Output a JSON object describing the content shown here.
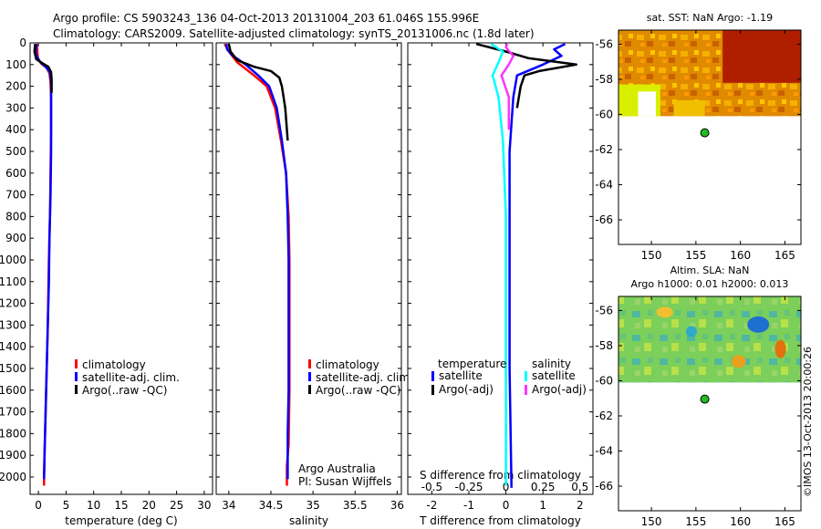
{
  "header": {
    "line1": "Argo profile: CS 5903243_136 04-Oct-2013 20131004_203 61.046S 155.996E",
    "line2": "Climatology: CARS2009. Satellite-adjusted climatology: synTS_20131006.nc (1.8d later)"
  },
  "side_stamp": "©IMOS 13-Oct-2013 20:00:26",
  "colors": {
    "climatology": "#ff0000",
    "satellite": "#0000ff",
    "argo": "#000000",
    "salinity_satellite": "#00ffff",
    "salinity_argo": "#ff33ff",
    "marker": "#22bb22"
  },
  "chart_data": [
    {
      "type": "line",
      "name": "temperature-panel",
      "xlabel": "temperature (deg C)",
      "ylabel": "",
      "xlim": [
        -1.5,
        31.5
      ],
      "ylim": [
        2080,
        0
      ],
      "x_ticks": [
        "0",
        "5",
        "10",
        "15",
        "20",
        "25",
        "30"
      ],
      "x_tick_values": [
        0,
        5,
        10,
        15,
        20,
        25,
        30
      ],
      "y_ticks": [
        0,
        100,
        200,
        300,
        400,
        500,
        600,
        700,
        800,
        900,
        1000,
        1100,
        1200,
        1300,
        1400,
        1500,
        1600,
        1700,
        1800,
        1900,
        2000
      ],
      "legend": [
        "climatology",
        "satellite-adj. clim.",
        "Argo(..raw -QC)"
      ],
      "series": [
        {
          "name": "climatology",
          "color": "#ff0000",
          "pairs": [
            [
              -0.3,
              5
            ],
            [
              -0.1,
              70
            ],
            [
              0.5,
              95
            ],
            [
              1.5,
              115
            ],
            [
              2.0,
              140
            ],
            [
              2.2,
              180
            ],
            [
              2.3,
              250
            ],
            [
              2.3,
              400
            ],
            [
              2.2,
              600
            ],
            [
              2.1,
              800
            ],
            [
              1.9,
              1000
            ],
            [
              1.7,
              1300
            ],
            [
              1.4,
              1600
            ],
            [
              1.1,
              1900
            ],
            [
              1.0,
              2040
            ]
          ]
        },
        {
          "name": "satellite-adj. clim.",
          "color": "#0000ff",
          "pairs": [
            [
              -0.4,
              5
            ],
            [
              -0.5,
              50
            ],
            [
              0.2,
              85
            ],
            [
              1.3,
              110
            ],
            [
              2.1,
              135
            ],
            [
              2.3,
              180
            ],
            [
              2.3,
              300
            ],
            [
              2.3,
              500
            ],
            [
              2.2,
              700
            ],
            [
              2.0,
              900
            ],
            [
              1.9,
              1100
            ],
            [
              1.7,
              1300
            ],
            [
              1.5,
              1500
            ],
            [
              1.3,
              1700
            ],
            [
              1.1,
              1900
            ],
            [
              1.0,
              2010
            ]
          ]
        },
        {
          "name": "Argo(..raw -QC)",
          "color": "#000000",
          "pairs": [
            [
              -0.6,
              5
            ],
            [
              -0.7,
              40
            ],
            [
              -0.4,
              75
            ],
            [
              0.8,
              95
            ],
            [
              1.8,
              110
            ],
            [
              2.3,
              135
            ],
            [
              2.4,
              170
            ],
            [
              2.4,
              230
            ]
          ]
        }
      ]
    },
    {
      "type": "line",
      "name": "salinity-panel",
      "xlabel": "salinity",
      "ylabel": "",
      "xlim": [
        33.85,
        36.05
      ],
      "ylim": [
        2080,
        0
      ],
      "x_ticks": [
        "34",
        "34.5",
        "35",
        "35.5",
        "36"
      ],
      "x_tick_values": [
        34,
        34.5,
        35,
        35.5,
        36
      ],
      "legend": [
        "climatology",
        "satellite-adj. clim.",
        "Argo(..raw -QC)"
      ],
      "annotation": [
        "Argo Australia",
        "PI: Susan Wijffels"
      ],
      "series": [
        {
          "name": "climatology",
          "color": "#ff0000",
          "pairs": [
            [
              33.95,
              5
            ],
            [
              34.0,
              40
            ],
            [
              34.1,
              90
            ],
            [
              34.3,
              150
            ],
            [
              34.45,
              200
            ],
            [
              34.55,
              300
            ],
            [
              34.62,
              450
            ],
            [
              34.68,
              600
            ],
            [
              34.71,
              800
            ],
            [
              34.72,
              1000
            ],
            [
              34.72,
              1300
            ],
            [
              34.72,
              1600
            ],
            [
              34.71,
              1850
            ],
            [
              34.69,
              1950
            ],
            [
              34.69,
              2040
            ]
          ]
        },
        {
          "name": "satellite-adj. clim.",
          "color": "#0000ff",
          "pairs": [
            [
              33.97,
              5
            ],
            [
              33.98,
              30
            ],
            [
              34.05,
              60
            ],
            [
              34.2,
              100
            ],
            [
              34.35,
              150
            ],
            [
              34.48,
              200
            ],
            [
              34.57,
              300
            ],
            [
              34.63,
              450
            ],
            [
              34.68,
              600
            ],
            [
              34.7,
              800
            ],
            [
              34.71,
              1000
            ],
            [
              34.71,
              1300
            ],
            [
              34.71,
              1600
            ],
            [
              34.7,
              1800
            ],
            [
              34.7,
              2010
            ]
          ]
        },
        {
          "name": "Argo(..raw -QC)",
          "color": "#000000",
          "pairs": [
            [
              34.0,
              5
            ],
            [
              34.02,
              40
            ],
            [
              34.1,
              80
            ],
            [
              34.3,
              110
            ],
            [
              34.5,
              130
            ],
            [
              34.6,
              160
            ],
            [
              34.63,
              200
            ],
            [
              34.67,
              300
            ],
            [
              34.7,
              450
            ]
          ]
        }
      ]
    },
    {
      "type": "line",
      "name": "difference-panel",
      "xlabel": "T difference from climatology",
      "x2label": "S difference from climatology",
      "xlim": [
        -2.65,
        2.35
      ],
      "x2lim": [
        -0.6625,
        0.5875
      ],
      "ylim": [
        2080,
        0
      ],
      "x_ticks": [
        "-2",
        "-1",
        "0",
        "1",
        "2"
      ],
      "x_tick_values": [
        -2,
        -1,
        0,
        1,
        2
      ],
      "x2_ticks": [
        "-0.5",
        "-0.25",
        "0",
        "0.25",
        "0.5"
      ],
      "x2_tick_values": [
        -0.5,
        -0.25,
        0,
        0.25,
        0.5
      ],
      "legend_headers": [
        "temperature",
        "salinity"
      ],
      "legend": [
        "satellite",
        "Argo(-adj)",
        "satellite",
        "Argo(-adj)"
      ],
      "series": [
        {
          "name": "temperature satellite",
          "color": "#0000ff",
          "pairs": [
            [
              1.6,
              5
            ],
            [
              1.3,
              30
            ],
            [
              1.5,
              60
            ],
            [
              1.0,
              100
            ],
            [
              0.3,
              150
            ],
            [
              0.2,
              250
            ],
            [
              0.1,
              500
            ],
            [
              0.1,
              1000
            ],
            [
              0.1,
              1500
            ],
            [
              0.15,
              2050
            ]
          ]
        },
        {
          "name": "temperature Argo(-adj)",
          "color": "#000000",
          "pairs": [
            [
              -0.8,
              5
            ],
            [
              0.0,
              40
            ],
            [
              0.6,
              70
            ],
            [
              1.9,
              100
            ],
            [
              0.9,
              130
            ],
            [
              0.5,
              150
            ],
            [
              0.4,
              200
            ],
            [
              0.3,
              300
            ]
          ]
        },
        {
          "name": "salinity satellite",
          "color": "#00ffff",
          "pairs": [
            [
              -0.1,
              5
            ],
            [
              -0.02,
              40
            ],
            [
              -0.05,
              90
            ],
            [
              -0.09,
              150
            ],
            [
              -0.05,
              250
            ],
            [
              -0.02,
              450
            ],
            [
              0.0,
              800
            ],
            [
              0.0,
              1200
            ],
            [
              0.0,
              1700
            ],
            [
              0.0,
              2040
            ]
          ]
        },
        {
          "name": "salinity Argo(-adj)",
          "color": "#ff33ff",
          "pairs": [
            [
              0.01,
              5
            ],
            [
              0.0,
              20
            ],
            [
              0.05,
              60
            ],
            [
              0.02,
              100
            ],
            [
              -0.03,
              150
            ],
            [
              0.02,
              250
            ],
            [
              0.02,
              400
            ]
          ]
        }
      ]
    },
    {
      "type": "heatmap",
      "name": "sst-map",
      "title": "sat. SST: NaN Argo: -1.19",
      "x_ticks": [
        "150",
        "155",
        "160",
        "165"
      ],
      "x_tick_values": [
        150,
        155,
        160,
        165
      ],
      "y_ticks": [
        "-56",
        "-58",
        "-60",
        "-62",
        "-64",
        "-66"
      ],
      "y_tick_values": [
        -56,
        -58,
        -60,
        -62,
        -64,
        -66
      ],
      "xlim": [
        146.3,
        166.8
      ],
      "ylim": [
        -67.4,
        -55.2
      ],
      "data_bottom_lat": -60.1,
      "argo_position": [
        155.996,
        -61.046
      ]
    },
    {
      "type": "heatmap",
      "name": "sla-map",
      "title_line1": "Altim. SLA: NaN",
      "title_line2": "Argo h1000: 0.01 h2000: 0.013",
      "x_ticks": [
        "150",
        "155",
        "160",
        "165"
      ],
      "x_tick_values": [
        150,
        155,
        160,
        165
      ],
      "y_ticks": [
        "-56",
        "-58",
        "-60",
        "-62",
        "-64",
        "-66"
      ],
      "y_tick_values": [
        -56,
        -58,
        -60,
        -62,
        -64,
        -66
      ],
      "xlim": [
        146.3,
        166.8
      ],
      "ylim": [
        -67.4,
        -55.2
      ],
      "data_bottom_lat": -60.1,
      "argo_position": [
        155.996,
        -61.046
      ]
    }
  ]
}
